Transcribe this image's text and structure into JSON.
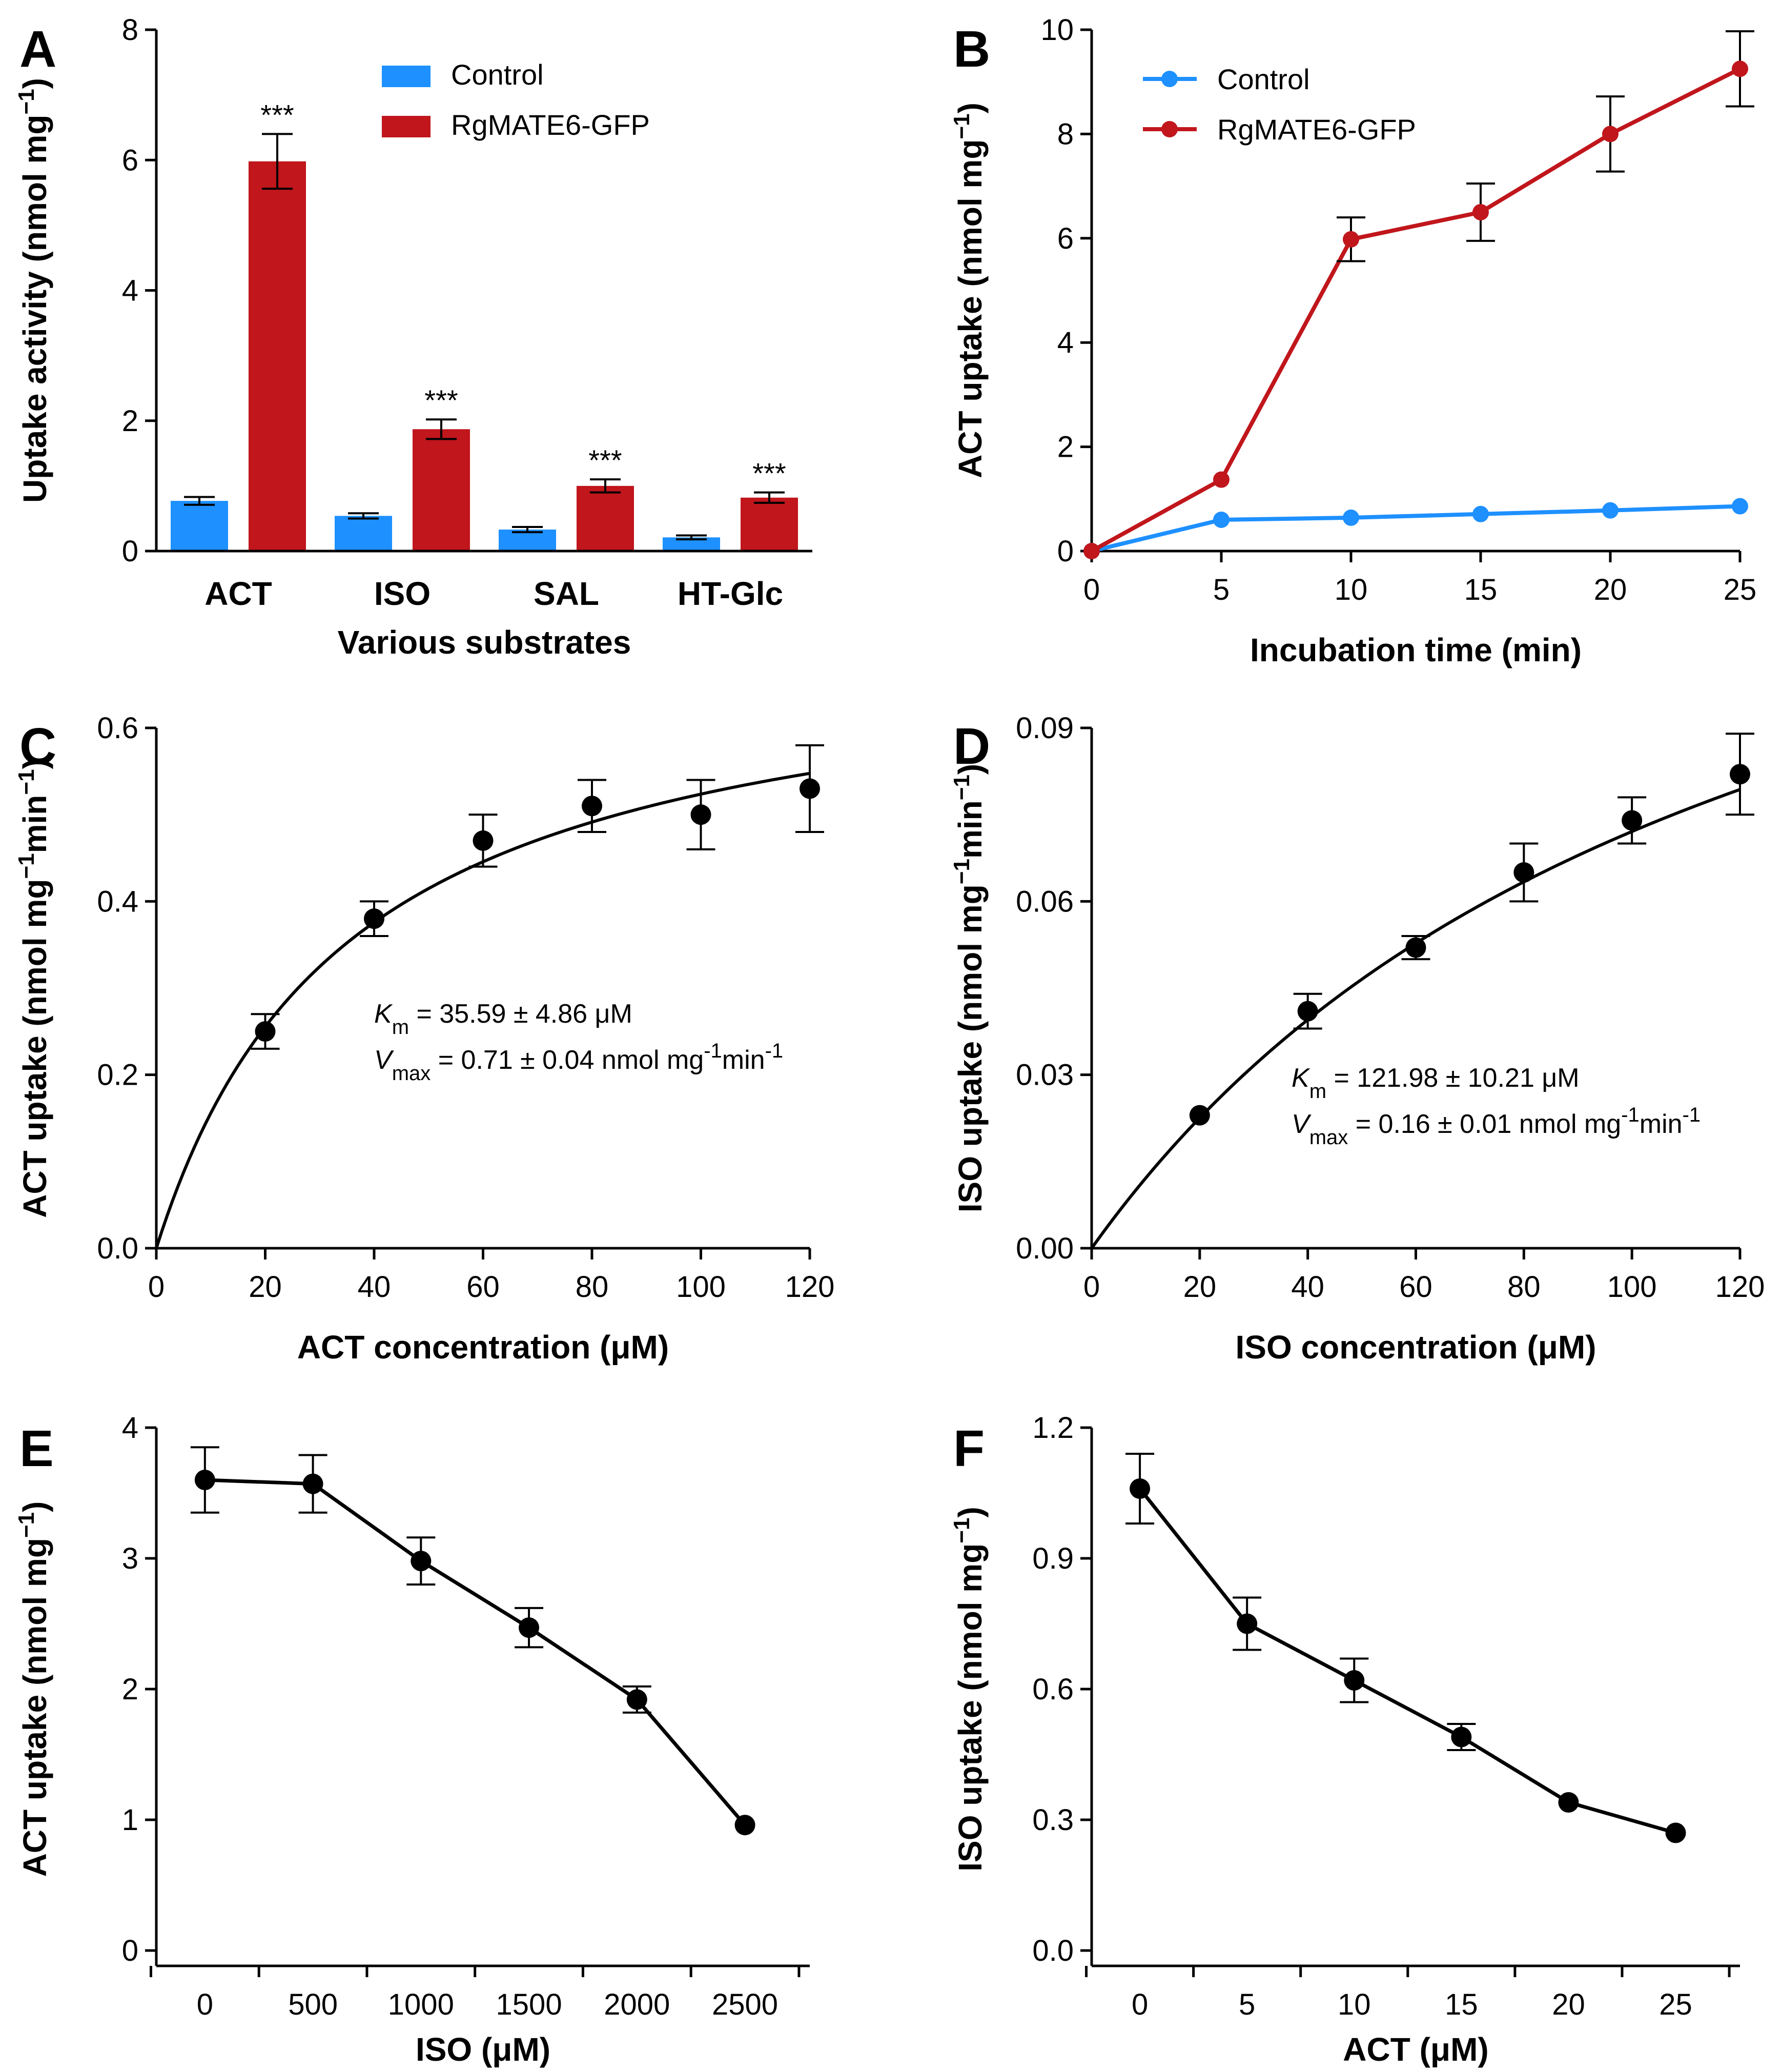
{
  "chart_data": [
    {
      "panel": "A",
      "type": "bar",
      "title": "",
      "xlabel": "Various substrates",
      "ylabel": "Uptake activity (nmol mg",
      "ylabel_sup": "−1",
      "ylabel_end": ")",
      "ylim": [
        0,
        8
      ],
      "yticks": [
        0,
        2,
        4,
        6,
        8
      ],
      "categories": [
        "ACT",
        "ISO",
        "SAL",
        "HT-Glc"
      ],
      "series": [
        {
          "name": "Control",
          "color": "#1e90ff",
          "values": [
            0.77,
            0.54,
            0.33,
            0.21
          ],
          "errors": [
            0.06,
            0.04,
            0.04,
            0.03
          ]
        },
        {
          "name": "RgMATE6-GFP",
          "color": "#c0161c",
          "values": [
            5.98,
            1.87,
            1.0,
            0.82
          ],
          "errors": [
            0.42,
            0.15,
            0.1,
            0.08
          ]
        }
      ],
      "significance": [
        "***",
        "***",
        "***",
        "***"
      ],
      "legend": "top-right"
    },
    {
      "panel": "B",
      "type": "line",
      "xlabel": "Incubation time (min)",
      "ylabel": "ACT uptake (nmol mg",
      "ylabel_sup": "−1",
      "ylabel_end": ")",
      "xlim": [
        0,
        25
      ],
      "ylim": [
        0,
        10
      ],
      "xticks": [
        0,
        5,
        10,
        15,
        20,
        25
      ],
      "yticks": [
        0,
        2,
        4,
        6,
        8,
        10
      ],
      "x": [
        0,
        5,
        10,
        15,
        20,
        25
      ],
      "series": [
        {
          "name": "Control",
          "color": "#1e90ff",
          "values": [
            0.0,
            0.6,
            0.64,
            0.71,
            0.78,
            0.86
          ],
          "errors": [
            0,
            0,
            0,
            0,
            0,
            0
          ]
        },
        {
          "name": "RgMATE6-GFP",
          "color": "#c0161c",
          "values": [
            0.0,
            1.37,
            5.98,
            6.5,
            8.0,
            9.25
          ],
          "errors": [
            0,
            0,
            0.42,
            0.55,
            0.72,
            0.72
          ]
        }
      ],
      "legend": "top-left"
    },
    {
      "panel": "C",
      "type": "scatter",
      "xlabel": "ACT concentration (μM)",
      "ylabel": "ACT uptake (nmol mg",
      "ylabel_sup": "−1",
      "ylabel_mid": "min",
      "ylabel_sup2": "−1",
      "ylabel_end": ")",
      "xlim": [
        0,
        120
      ],
      "ylim": [
        0,
        0.6
      ],
      "xticks": [
        0,
        20,
        40,
        60,
        80,
        100,
        120
      ],
      "yticks": [
        0.0,
        0.2,
        0.4,
        0.6
      ],
      "ytick_labels": [
        "0.0",
        "0.2",
        "0.4",
        "0.6"
      ],
      "x": [
        20,
        40,
        60,
        80,
        100,
        120
      ],
      "values": [
        0.25,
        0.38,
        0.47,
        0.51,
        0.5,
        0.53
      ],
      "errors": [
        0.02,
        0.02,
        0.03,
        0.03,
        0.04,
        0.05
      ],
      "fit": {
        "model": "michaelis-menten",
        "km": 35.59,
        "vmax": 0.71
      },
      "annotation_km": {
        "sym": "K",
        "sub": "m",
        "text": " = 35.59 ± 4.86 μM"
      },
      "annotation_vmax": {
        "sym": "V",
        "sub": "max",
        "text": " = 0.71 ± 0.04 nmol mg",
        "sup": "-1",
        "text2": "min",
        "sup2": "-1"
      }
    },
    {
      "panel": "D",
      "type": "scatter",
      "xlabel": "ISO concentration (μM)",
      "ylabel": "ISO uptake (nmol mg",
      "ylabel_sup": "−1",
      "ylabel_mid": "min",
      "ylabel_sup2": "−1",
      "ylabel_end": ")",
      "xlim": [
        0,
        120
      ],
      "ylim": [
        0,
        0.09
      ],
      "xticks": [
        0,
        20,
        40,
        60,
        80,
        100,
        120
      ],
      "yticks": [
        0.0,
        0.03,
        0.06,
        0.09
      ],
      "ytick_labels": [
        "0.00",
        "0.03",
        "0.06",
        "0.09"
      ],
      "x": [
        20,
        40,
        60,
        80,
        100,
        120
      ],
      "values": [
        0.023,
        0.041,
        0.052,
        0.065,
        0.074,
        0.082
      ],
      "errors": [
        0.0,
        0.003,
        0.002,
        0.005,
        0.004,
        0.007
      ],
      "fit": {
        "model": "michaelis-menten",
        "km": 121.98,
        "vmax": 0.16
      },
      "annotation_km": {
        "sym": "K",
        "sub": "m",
        "text": " = 121.98 ± 10.21 μM"
      },
      "annotation_vmax": {
        "sym": "V",
        "sub": "max",
        "text": " = 0.16 ± 0.01 nmol mg",
        "sup": "-1",
        "text2": "min",
        "sup2": "-1"
      }
    },
    {
      "panel": "E",
      "type": "line",
      "xlabel": "ISO (μM)",
      "ylabel": "ACT uptake (nmol mg",
      "ylabel_sup": "−1",
      "ylabel_end": ")",
      "categories": [
        "0",
        "500",
        "1000",
        "1500",
        "2000",
        "2500"
      ],
      "ylim": [
        0,
        4
      ],
      "yticks": [
        0,
        1,
        2,
        3,
        4
      ],
      "values": [
        3.6,
        3.57,
        2.98,
        2.47,
        1.92,
        0.96
      ],
      "errors": [
        0.25,
        0.22,
        0.18,
        0.15,
        0.1,
        0.0
      ]
    },
    {
      "panel": "F",
      "type": "line",
      "xlabel": "ACT (μM)",
      "ylabel": "ISO uptake (nmol mg",
      "ylabel_sup": "−1",
      "ylabel_end": ")",
      "categories": [
        "0",
        "5",
        "10",
        "15",
        "20",
        "25"
      ],
      "ylim": [
        0,
        1.2
      ],
      "yticks": [
        0.0,
        0.3,
        0.6,
        0.9,
        1.2
      ],
      "ytick_labels": [
        "0.0",
        "0.3",
        "0.6",
        "0.9",
        "1.2"
      ],
      "values": [
        1.06,
        0.75,
        0.62,
        0.49,
        0.34,
        0.27
      ],
      "errors": [
        0.08,
        0.06,
        0.05,
        0.03,
        0.0,
        0.0
      ]
    }
  ]
}
